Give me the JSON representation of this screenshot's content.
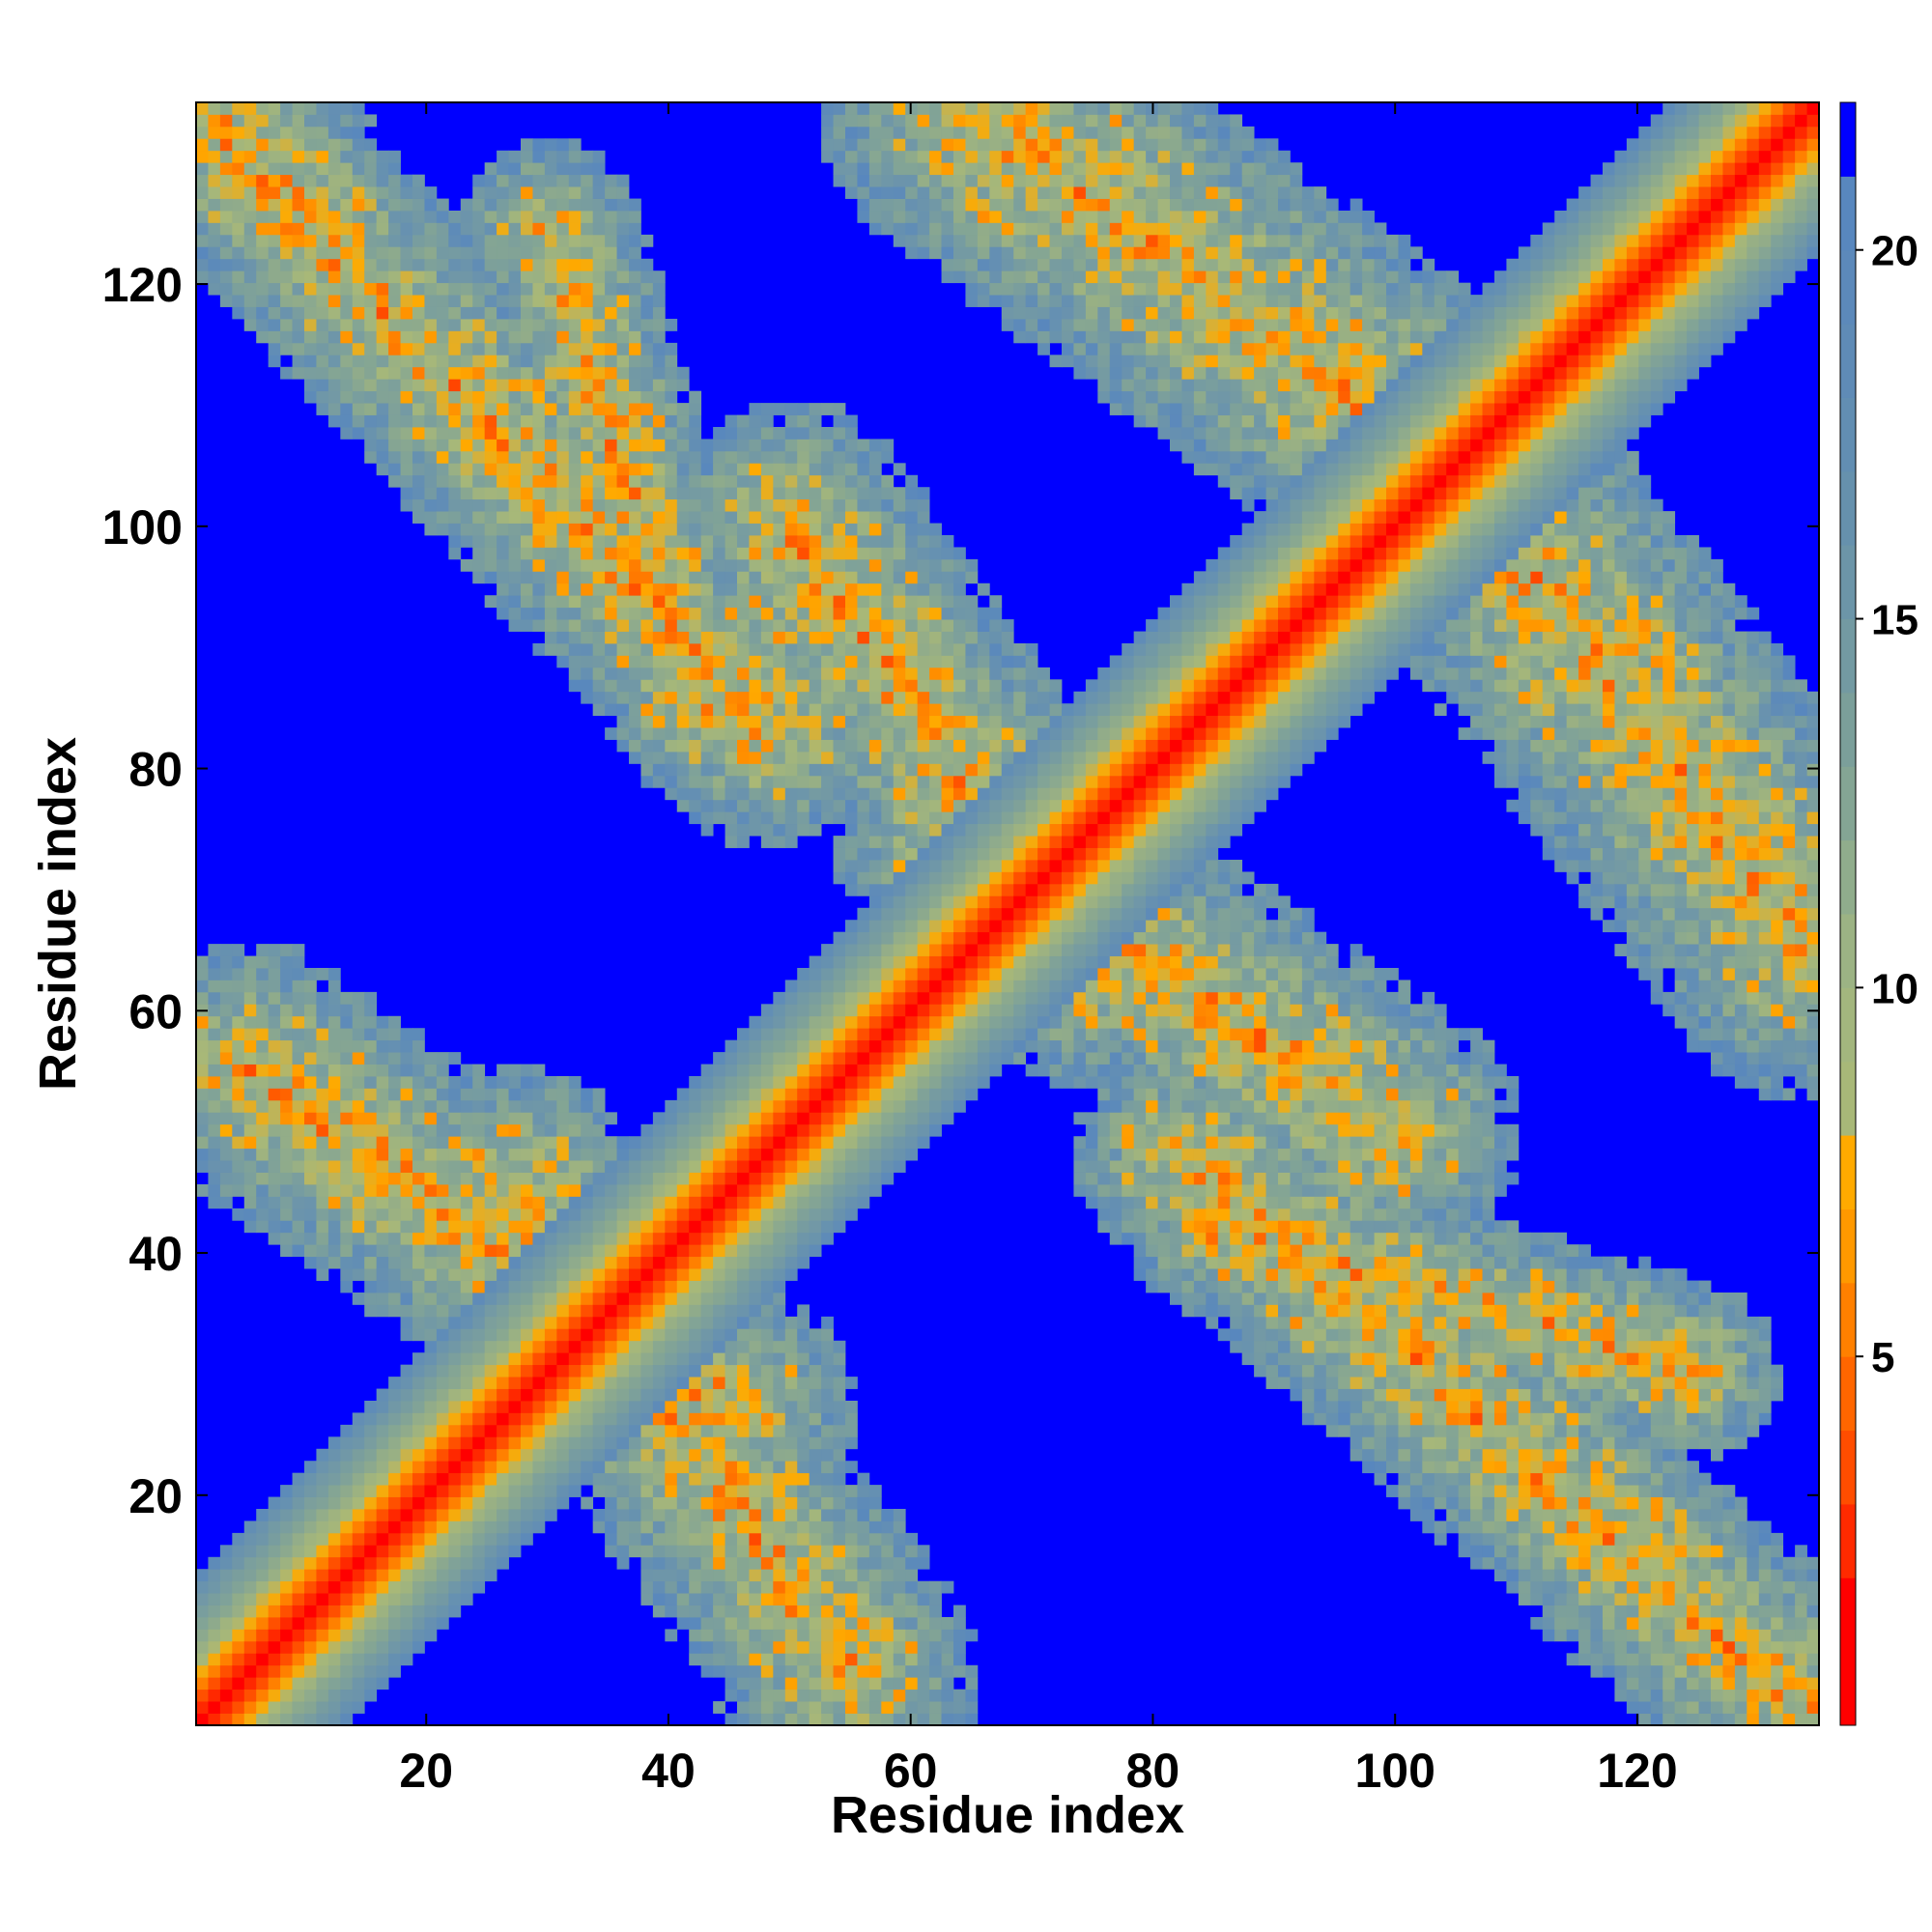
{
  "chart_data": {
    "type": "heatmap",
    "title": "",
    "xlabel": "Residue index",
    "ylabel": "Residue index",
    "n_residues": 135,
    "xlim": [
      1,
      135
    ],
    "ylim": [
      1,
      135
    ],
    "x_ticks": [
      20,
      40,
      60,
      80,
      100,
      120
    ],
    "y_ticks": [
      20,
      40,
      60,
      80,
      100,
      120
    ],
    "x_tick_labels": [
      "20",
      "40",
      "60",
      "80",
      "100",
      "120"
    ],
    "y_tick_labels": [
      "20",
      "40",
      "60",
      "80",
      "100",
      "120"
    ],
    "colorbar": {
      "min": 0,
      "max": 22,
      "ticks": [
        5,
        10,
        15,
        20
      ],
      "tick_labels": [
        "5",
        "10",
        "15",
        "20"
      ],
      "levels": [
        {
          "upper": 2,
          "color": "#ff0000"
        },
        {
          "upper": 3,
          "color": "#ff2a00"
        },
        {
          "upper": 4,
          "color": "#ff4d00"
        },
        {
          "upper": 5,
          "color": "#ff6600"
        },
        {
          "upper": 6,
          "color": "#ff8000"
        },
        {
          "upper": 7,
          "color": "#ff9900"
        },
        {
          "upper": 8,
          "color": "#ffaa00"
        },
        {
          "upper": 9,
          "color": "#a8b878"
        },
        {
          "upper": 10,
          "color": "#a3b67e"
        },
        {
          "upper": 11,
          "color": "#9cb384"
        },
        {
          "upper": 12,
          "color": "#90ad8c"
        },
        {
          "upper": 13,
          "color": "#84a594"
        },
        {
          "upper": 14,
          "color": "#7b9f9a"
        },
        {
          "upper": 15,
          "color": "#739aa2"
        },
        {
          "upper": 16,
          "color": "#6c95a8"
        },
        {
          "upper": 17,
          "color": "#6691ad"
        },
        {
          "upper": 18,
          "color": "#628eb2"
        },
        {
          "upper": 19,
          "color": "#5f8bb6"
        },
        {
          "upper": 20,
          "color": "#5c89ba"
        },
        {
          "upper": 21,
          "color": "#5887be"
        },
        {
          "upper": 22,
          "color": "#0000ff"
        }
      ]
    },
    "colormap": {
      "above_max": "#0000ff",
      "stops": [
        {
          "v": 1,
          "color": "#ff0000"
        },
        {
          "v": 4,
          "color": "#ff4d00"
        },
        {
          "v": 7,
          "color": "#ffaa00"
        },
        {
          "v": 9,
          "color": "#a8b878"
        },
        {
          "v": 13,
          "color": "#84a594"
        },
        {
          "v": 21,
          "color": "#5887be"
        }
      ]
    },
    "contact_bands": [
      {
        "from": [
          1,
          135
        ],
        "to": [
          48,
          83
        ],
        "halfwidth": 9
      },
      {
        "from": [
          83,
          48
        ],
        "to": [
          135,
          1
        ],
        "halfwidth": 9
      },
      {
        "from": [
          5,
          55
        ],
        "to": [
          45,
          27
        ],
        "halfwidth": 10
      },
      {
        "from": [
          27,
          45
        ],
        "to": [
          55,
          5
        ],
        "halfwidth": 10
      },
      {
        "from": [
          30,
          125
        ],
        "to": [
          42,
          85
        ],
        "halfwidth": 7
      },
      {
        "from": [
          85,
          42
        ],
        "to": [
          125,
          30
        ],
        "halfwidth": 7
      },
      {
        "from": [
          64,
          75
        ],
        "to": [
          100,
          50
        ],
        "halfwidth": 10
      },
      {
        "from": [
          50,
          100
        ],
        "to": [
          75,
          64
        ],
        "halfwidth": 10
      },
      {
        "from": [
          65,
          135
        ],
        "to": [
          105,
          105
        ],
        "halfwidth": 12
      },
      {
        "from": [
          105,
          105
        ],
        "to": [
          135,
          65
        ],
        "halfwidth": 12
      }
    ]
  }
}
